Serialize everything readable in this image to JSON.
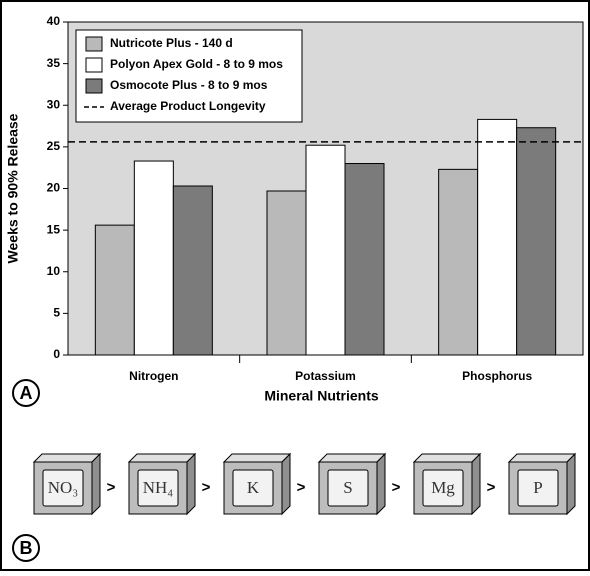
{
  "chart_data": {
    "type": "bar",
    "x_label": "Mineral Nutrients",
    "y_label": "Weeks to 90% Release",
    "categories": [
      "Nitrogen",
      "Potassium",
      "Phosphorus"
    ],
    "series": [
      {
        "name": "Nutricote Plus - 140 d",
        "color": "#b9b9b9",
        "values": [
          15.6,
          19.7,
          22.3
        ]
      },
      {
        "name": "Polyon Apex Gold - 8 to 9 mos",
        "color": "#ffffff",
        "values": [
          23.3,
          25.2,
          28.3
        ]
      },
      {
        "name": "Osmocote Plus - 8 to 9 mos",
        "color": "#7b7b7b",
        "values": [
          20.3,
          23.0,
          27.3
        ]
      }
    ],
    "reference_line": {
      "name": "Average Product Longevity",
      "value": 25.6,
      "style": "dashed"
    },
    "ylim": [
      0,
      40
    ],
    "yticks": [
      0,
      5,
      10,
      15,
      20,
      25,
      30,
      35,
      40
    ],
    "legend": "upper left",
    "background": "#d9d9d9"
  },
  "panel_labels": [
    "A",
    "B"
  ],
  "nutrient_order": {
    "items": [
      "NO₃",
      "NH₄",
      "K",
      "S",
      "Mg",
      "P"
    ],
    "separator": ">"
  }
}
